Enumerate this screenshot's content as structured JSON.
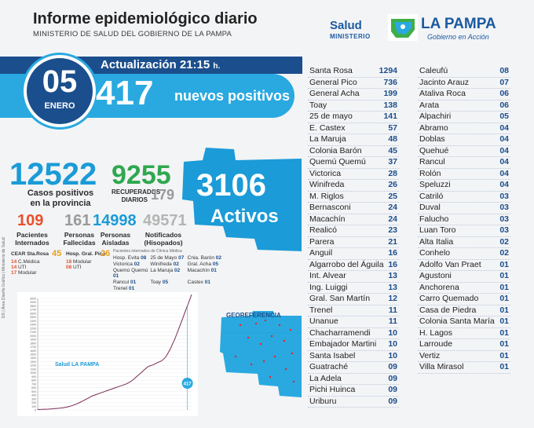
{
  "header": {
    "title": "Informe epidemiológico diario",
    "subtitle": "MINISTERIO DE SALUD DEL GOBIERNO DE LA PAMPA"
  },
  "logo": {
    "salud": "Salud",
    "ministerio": "MINISTERIO",
    "la_pampa": "LA PAMPA",
    "gobierno": "Gobierno en Acción"
  },
  "update": {
    "label": "Actualización 21:15",
    "suffix": "h."
  },
  "date": {
    "day": "05",
    "month": "ENERO"
  },
  "new_positives": {
    "value": "417",
    "label": "nuevos positivos"
  },
  "cases": {
    "value": "12522",
    "label_1": "Casos positivos",
    "label_2": "en la provincia"
  },
  "recovered": {
    "value": "9255",
    "label_1": "RECUPERADOS",
    "label_2": "DIARIOS",
    "daily": "179"
  },
  "stats": [
    {
      "value": "109",
      "label_1": "Pacientes",
      "label_2": "Internados",
      "color": "#e8502a"
    },
    {
      "value": "161",
      "label_1": "Personas",
      "label_2": "Fallecidas",
      "color": "#9a9a9a"
    },
    {
      "value": "14998",
      "label_1": "Personas",
      "label_2": "Aisladas",
      "color": "#1b9bd7"
    },
    {
      "value": "49571",
      "label_1": "Notificados",
      "label_2": "(Hisopados)",
      "color": "#b5b5b5"
    }
  ],
  "active": {
    "value": "3106",
    "label": "Activos"
  },
  "hospital_sr": {
    "name": "CEAR Sta.Rosa",
    "total": "45",
    "rows": [
      [
        "14",
        "C.Médica"
      ],
      [
        "14",
        "UTI"
      ],
      [
        "17",
        "Modular"
      ]
    ]
  },
  "hospital_gp": {
    "name": "Hosp. Gral. Pico",
    "total": "26",
    "rows": [
      [
        "18",
        "Modular"
      ],
      [
        "08",
        "UTI"
      ]
    ]
  },
  "clinic": {
    "title": "Pacientes internados de Clínica Médica",
    "items": [
      [
        "Hosp. Evita",
        "08"
      ],
      [
        "25 de Mayo",
        "07"
      ],
      [
        "Cnia. Barón",
        "02"
      ],
      [
        "Victorica",
        "02"
      ],
      [
        "Winifreda",
        "02"
      ],
      [
        "Gral. Acha",
        "05"
      ],
      [
        "Quemú Quemú",
        "01"
      ],
      [
        "La Maruja",
        "02"
      ],
      [
        "Macachín",
        "01"
      ],
      [
        "Rancul",
        "01"
      ],
      [
        "Toay",
        "05"
      ],
      [
        "Castex",
        "01"
      ],
      [
        "Trenel",
        "01"
      ]
    ]
  },
  "chart_label": "417",
  "chart_logo": "Salud LA PAMPA",
  "side_note": "DS | Área Diseño Gráfico | Ministerio de Salud",
  "chart_data": {
    "type": "line",
    "title": "",
    "xlabel": "",
    "ylabel": "",
    "ylim": [
      0,
      3000
    ],
    "y_ticks": [
      "0",
      "100",
      "200",
      "300",
      "400",
      "500",
      "600",
      "700",
      "800",
      "900",
      "1000",
      "1100",
      "1200",
      "1300",
      "1400",
      "1500",
      "1600",
      "1700",
      "1800",
      "1900",
      "2000",
      "2100",
      "2200",
      "2300",
      "2400",
      "2500",
      "2600",
      "2700",
      "2800",
      "2900",
      "3000"
    ],
    "series": [
      {
        "values": [
          10,
          12,
          15,
          18,
          20,
          22,
          25,
          30,
          35,
          40,
          45,
          52,
          60,
          70,
          80,
          95,
          110,
          130,
          150,
          175,
          200,
          230,
          260,
          290,
          320,
          350,
          380,
          400,
          420,
          440,
          460,
          480,
          500,
          520,
          540,
          560,
          580,
          600,
          620,
          640,
          660,
          680,
          700,
          730,
          760,
          800,
          850,
          900,
          950,
          1000,
          1050,
          1100,
          1150,
          1180,
          1200,
          1220,
          1250,
          1280,
          1300,
          1330,
          1380,
          1450,
          1550,
          1650,
          1780,
          1900,
          2050,
          2200,
          2350,
          2500,
          2650,
          2800,
          2950,
          3106
        ]
      }
    ],
    "highlight": "417"
  },
  "geo": {
    "label": "GEOREFERENCIA"
  },
  "locations_1": [
    [
      "Santa Rosa",
      "1294"
    ],
    [
      "General Pico",
      "736"
    ],
    [
      "General Acha",
      "199"
    ],
    [
      "Toay",
      "138"
    ],
    [
      "25 de mayo",
      "141"
    ],
    [
      "E. Castex",
      "57"
    ],
    [
      "La Maruja",
      "48"
    ],
    [
      "Colonia Barón",
      "45"
    ],
    [
      "Quemú Quemú",
      "37"
    ],
    [
      "Victorica",
      "28"
    ],
    [
      "Winifreda",
      "26"
    ],
    [
      "M. Riglos",
      "25"
    ],
    [
      "Bernasconi",
      "24"
    ],
    [
      "Macachín",
      "24"
    ],
    [
      "Realicó",
      "23"
    ],
    [
      "Parera",
      "21"
    ],
    [
      "Anguil",
      "16"
    ],
    [
      "Algarrobo del Águila",
      "16"
    ],
    [
      "Int. Alvear",
      "13"
    ],
    [
      "Ing. Luiggi",
      "13"
    ],
    [
      "Gral. San Martín",
      "12"
    ],
    [
      "Trenel",
      "11"
    ],
    [
      "Unanue",
      "11"
    ],
    [
      "Chacharramendi",
      "10"
    ],
    [
      "Embajador Martini",
      "10"
    ],
    [
      "Santa Isabel",
      "10"
    ],
    [
      "Guatraché",
      "09"
    ],
    [
      "La Adela",
      "09"
    ],
    [
      "Pichi Huinca",
      "09"
    ],
    [
      "Uriburu",
      "09"
    ]
  ],
  "locations_2": [
    [
      "Caleufú",
      "08"
    ],
    [
      "Jacinto Arauz",
      "07"
    ],
    [
      "Ataliva Roca",
      "06"
    ],
    [
      "Arata",
      "06"
    ],
    [
      "Alpachiri",
      "05"
    ],
    [
      "Abramo",
      "04"
    ],
    [
      "Doblas",
      "04"
    ],
    [
      "Quehué",
      "04"
    ],
    [
      "Rancul",
      "04"
    ],
    [
      "Rolón",
      "04"
    ],
    [
      "Speluzzi",
      "04"
    ],
    [
      "Catriló",
      "03"
    ],
    [
      "Duval",
      "03"
    ],
    [
      "Falucho",
      "03"
    ],
    [
      "Luan Toro",
      "03"
    ],
    [
      "Alta Italia",
      "02"
    ],
    [
      "Conhelo",
      "02"
    ],
    [
      "Adolfo Van Praet",
      "01"
    ],
    [
      "Agustoni",
      "01"
    ],
    [
      "Anchorena",
      "01"
    ],
    [
      "Carro Quemado",
      "01"
    ],
    [
      "Casa de Piedra",
      "01"
    ],
    [
      "Colonia Santa María",
      "01"
    ],
    [
      "H. Lagos",
      "01"
    ],
    [
      "Larroude",
      "01"
    ],
    [
      "Vertiz",
      "01"
    ],
    [
      "Villa Mirasol",
      "01"
    ]
  ]
}
